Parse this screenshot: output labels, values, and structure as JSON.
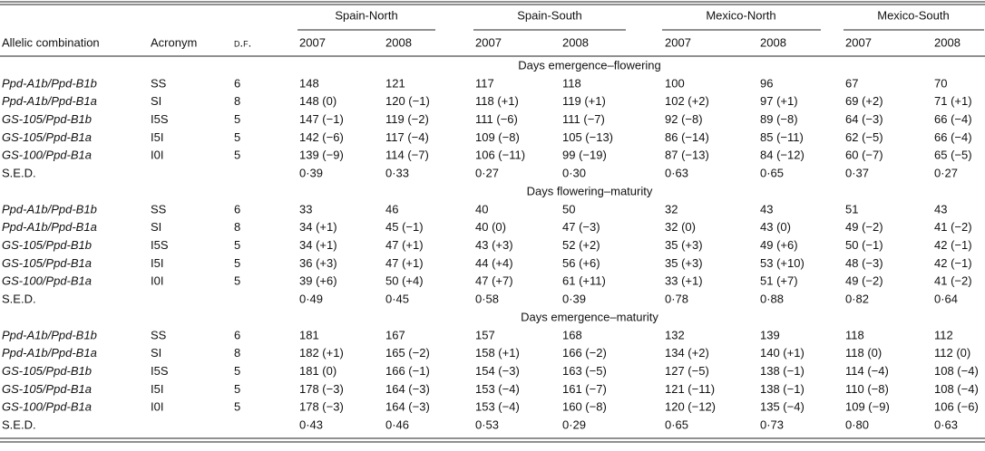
{
  "header": {
    "groups": [
      "Spain-North",
      "Spain-South",
      "Mexico-North",
      "Mexico-South"
    ],
    "columns": [
      "Allelic combination",
      "Acronym",
      "d.f."
    ],
    "years": [
      "2007",
      "2008",
      "2007",
      "2008",
      "2007",
      "2008",
      "2007",
      "2008"
    ]
  },
  "sections": [
    {
      "title": "Days emergence–flowering",
      "rows": [
        [
          "Ppd-A1b/Ppd-B1b",
          "SS",
          "6",
          "148",
          "121",
          "117",
          "118",
          "100",
          "96",
          "67",
          "70"
        ],
        [
          "Ppd-A1b/Ppd-B1a",
          "SI",
          "8",
          "148 (0)",
          "120 (−1)",
          "118 (+1)",
          "119 (+1)",
          "102 (+2)",
          "97 (+1)",
          "69 (+2)",
          "71 (+1)"
        ],
        [
          "GS-105/Ppd-B1b",
          "I5S",
          "5",
          "147 (−1)",
          "119 (−2)",
          "111 (−6)",
          "111 (−7)",
          "92 (−8)",
          "89 (−8)",
          "64 (−3)",
          "66 (−4)"
        ],
        [
          "GS-105/Ppd-B1a",
          "I5I",
          "5",
          "142 (−6)",
          "117 (−4)",
          "109 (−8)",
          "105 (−13)",
          "86 (−14)",
          "85 (−11)",
          "62 (−5)",
          "66 (−4)"
        ],
        [
          "GS-100/Ppd-B1a",
          "I0I",
          "5",
          "139 (−9)",
          "114 (−7)",
          "106 (−11)",
          "99 (−19)",
          "87 (−13)",
          "84 (−12)",
          "60 (−7)",
          "65 (−5)"
        ]
      ],
      "sed": {
        "label": "S.E.D.",
        "values": [
          "0·39",
          "0·33",
          "0·27",
          "0·30",
          "0·63",
          "0·65",
          "0·37",
          "0·27"
        ]
      }
    },
    {
      "title": "Days flowering–maturity",
      "rows": [
        [
          "Ppd-A1b/Ppd-B1b",
          "SS",
          "6",
          "33",
          "46",
          "40",
          "50",
          "32",
          "43",
          "51",
          "43"
        ],
        [
          "Ppd-A1b/Ppd-B1a",
          "SI",
          "8",
          "34 (+1)",
          "45 (−1)",
          "40 (0)",
          "47 (−3)",
          "32 (0)",
          "43 (0)",
          "49 (−2)",
          "41 (−2)"
        ],
        [
          "GS-105/Ppd-B1b",
          "I5S",
          "5",
          "34 (+1)",
          "47 (+1)",
          "43 (+3)",
          "52 (+2)",
          "35 (+3)",
          "49 (+6)",
          "50 (−1)",
          "42 (−1)"
        ],
        [
          "GS-105/Ppd-B1a",
          "I5I",
          "5",
          "36 (+3)",
          "47 (+1)",
          "44 (+4)",
          "56 (+6)",
          "35 (+3)",
          "53 (+10)",
          "48 (−3)",
          "42 (−1)"
        ],
        [
          "GS-100/Ppd-B1a",
          "I0I",
          "5",
          "39 (+6)",
          "50 (+4)",
          "47 (+7)",
          "61 (+11)",
          "33 (+1)",
          "51 (+7)",
          "49 (−2)",
          "41 (−2)"
        ]
      ],
      "sed": {
        "label": "S.E.D.",
        "values": [
          "0·49",
          "0·45",
          "0·58",
          "0·39",
          "0·78",
          "0·88",
          "0·82",
          "0·64"
        ]
      }
    },
    {
      "title": "Days emergence–maturity",
      "rows": [
        [
          "Ppd-A1b/Ppd-B1b",
          "SS",
          "6",
          "181",
          "167",
          "157",
          "168",
          "132",
          "139",
          "118",
          "112"
        ],
        [
          "Ppd-A1b/Ppd-B1a",
          "SI",
          "8",
          "182 (+1)",
          "165 (−2)",
          "158 (+1)",
          "166 (−2)",
          "134 (+2)",
          "140 (+1)",
          "118 (0)",
          "112 (0)"
        ],
        [
          "GS-105/Ppd-B1b",
          "I5S",
          "5",
          "181 (0)",
          "166 (−1)",
          "154 (−3)",
          "163 (−5)",
          "127 (−5)",
          "138 (−1)",
          "114 (−4)",
          "108 (−4)"
        ],
        [
          "GS-105/Ppd-B1a",
          "I5I",
          "5",
          "178 (−3)",
          "164 (−3)",
          "153 (−4)",
          "161 (−7)",
          "121 (−11)",
          "138 (−1)",
          "110 (−8)",
          "108 (−4)"
        ],
        [
          "GS-100/Ppd-B1a",
          "I0I",
          "5",
          "178 (−3)",
          "164 (−3)",
          "153 (−4)",
          "160 (−8)",
          "120 (−12)",
          "135 (−4)",
          "109 (−9)",
          "106 (−6)"
        ]
      ],
      "sed": {
        "label": "S.E.D.",
        "values": [
          "0·43",
          "0·46",
          "0·53",
          "0·29",
          "0·65",
          "0·73",
          "0·80",
          "0·63"
        ]
      }
    }
  ]
}
